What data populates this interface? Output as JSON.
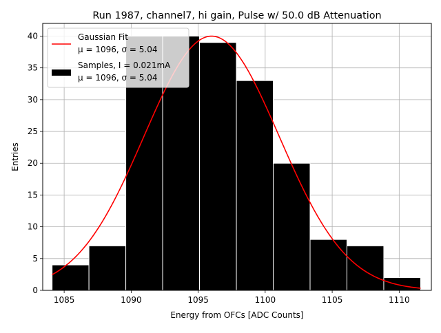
{
  "chart_data": {
    "type": "bar",
    "title": "Run 1987, channel7, hi gain, Pulse w/ 50.0 dB Attenuation",
    "xlabel": "Energy from OFCs [ADC Counts]",
    "ylabel": "Entries",
    "xlim": [
      1083.4,
      1112.4
    ],
    "ylim": [
      0,
      42
    ],
    "xticks": [
      1085,
      1090,
      1095,
      1100,
      1105,
      1110
    ],
    "yticks": [
      0,
      5,
      10,
      15,
      20,
      25,
      30,
      35,
      40
    ],
    "grid": true,
    "legend_position": "top-left",
    "histogram": {
      "name": "Samples, I = 0.021mA",
      "name_line2": "μ = 1096, σ = 5.04",
      "color": "#000000",
      "edge_color": "#ffffff",
      "bin_edges": [
        1084.1,
        1086.85,
        1089.6,
        1092.35,
        1095.1,
        1097.85,
        1100.6,
        1103.35,
        1106.1,
        1108.85,
        1111.6
      ],
      "counts": [
        4,
        7,
        40,
        40,
        39,
        33,
        20,
        8,
        7,
        2
      ]
    },
    "fit": {
      "name": "Gaussian Fit",
      "name_line2": "μ = 1096, σ = 5.04",
      "color": "#ff0000",
      "mu": 1096,
      "sigma": 5.04,
      "amplitude": 40,
      "x_range": [
        1084.1,
        1111.6
      ]
    }
  }
}
